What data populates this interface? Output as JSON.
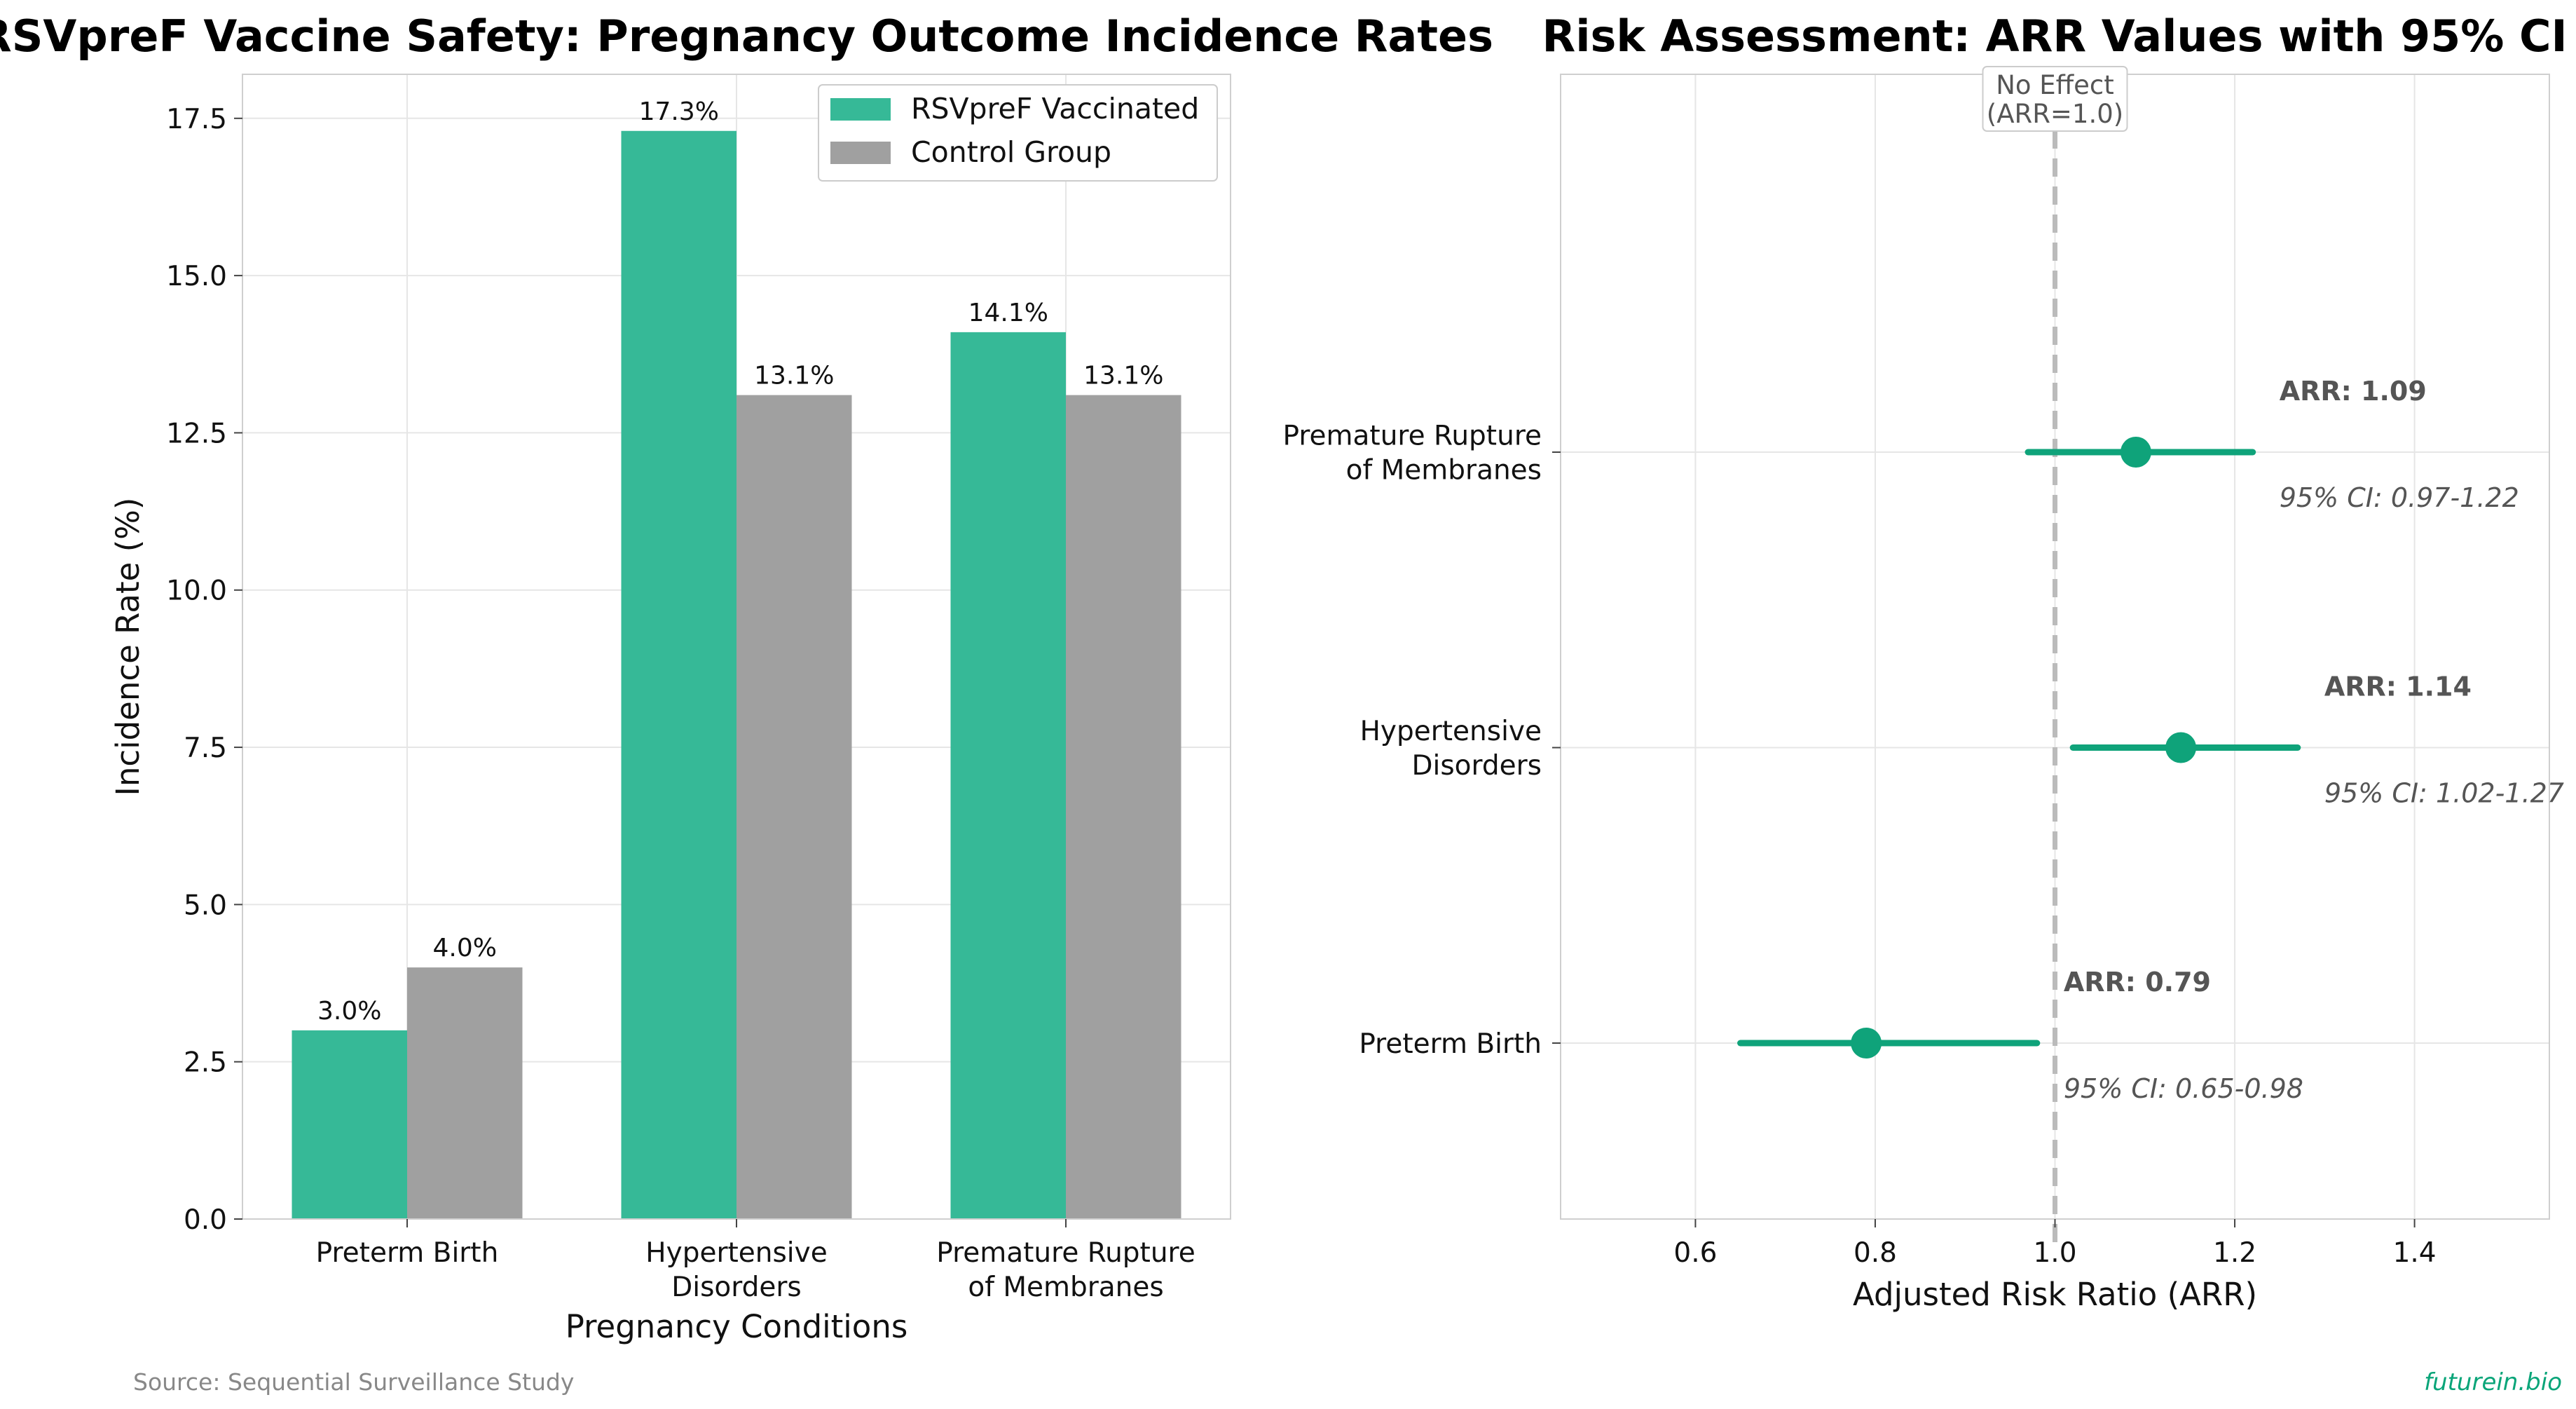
{
  "colors": {
    "vaccinated": "#36b997",
    "control": "#a0a0a0",
    "forest": "#0fa37a",
    "grid": "#e6e6e6",
    "reference_line": "#bbbbbb",
    "brand": "#0aa579"
  },
  "footer": {
    "source": "Source: Sequential Surveillance Study",
    "brand": "futurein.bio"
  },
  "chart_data": [
    {
      "type": "bar",
      "title": "RSVpreF Vaccine Safety: Pregnancy Outcome Incidence Rates",
      "xlabel": "Pregnancy Conditions",
      "ylabel": "Incidence Rate (%)",
      "ylim": [
        0,
        18.2
      ],
      "yticks": [
        "0.0",
        "2.5",
        "5.0",
        "7.5",
        "10.0",
        "12.5",
        "15.0",
        "17.5"
      ],
      "categories": [
        [
          "Preterm Birth"
        ],
        [
          "Hypertensive",
          "Disorders"
        ],
        [
          "Premature Rupture",
          "of Membranes"
        ]
      ],
      "series": [
        {
          "name": "RSVpreF Vaccinated",
          "values": [
            3.0,
            17.3,
            14.1
          ],
          "labels": [
            "3.0%",
            "17.3%",
            "14.1%"
          ]
        },
        {
          "name": "Control Group",
          "values": [
            4.0,
            13.1,
            13.1
          ],
          "labels": [
            "4.0%",
            "13.1%",
            "13.1%"
          ]
        }
      ],
      "legend": "top-right",
      "grid": true
    },
    {
      "type": "scatter",
      "title": "Risk Assessment: ARR Values with 95% CI",
      "xlabel": "Adjusted Risk Ratio (ARR)",
      "xlim": [
        0.45,
        1.55
      ],
      "xticks": [
        "0.6",
        "0.8",
        "1.0",
        "1.2",
        "1.4"
      ],
      "reference_line": {
        "x": 1.0,
        "label": [
          "No Effect",
          "(ARR=1.0)"
        ]
      },
      "points": [
        {
          "category": [
            "Preterm Birth"
          ],
          "arr": 0.79,
          "ci": [
            0.65,
            0.98
          ],
          "arr_label": "ARR: 0.79",
          "ci_label": "95% CI: 0.65-0.98"
        },
        {
          "category": [
            "Hypertensive",
            "Disorders"
          ],
          "arr": 1.14,
          "ci": [
            1.02,
            1.27
          ],
          "arr_label": "ARR: 1.14",
          "ci_label": "95% CI: 1.02-1.27"
        },
        {
          "category": [
            "Premature Rupture",
            "of Membranes"
          ],
          "arr": 1.09,
          "ci": [
            0.97,
            1.22
          ],
          "arr_label": "ARR: 1.09",
          "ci_label": "95% CI: 0.97-1.22"
        }
      ],
      "grid": true
    }
  ]
}
